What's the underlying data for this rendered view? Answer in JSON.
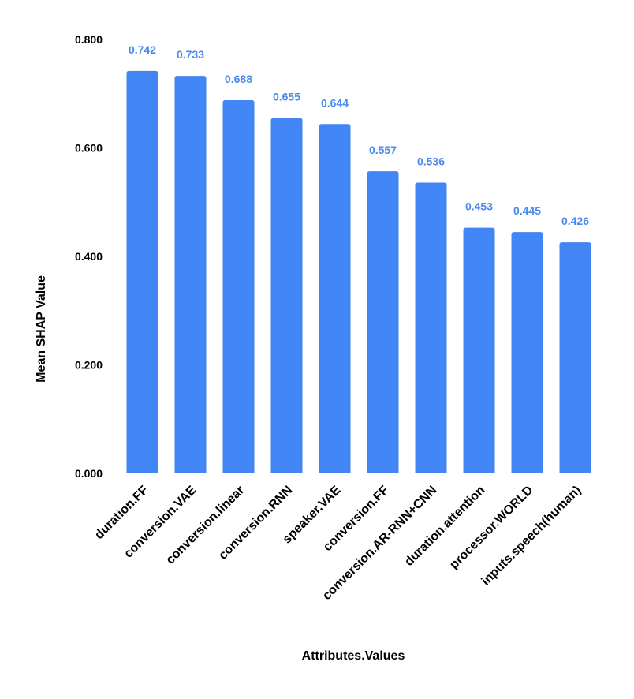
{
  "chart_data": {
    "type": "bar",
    "xlabel": "Attributes.Values",
    "ylabel": "Mean SHAP Value",
    "ylim": [
      0,
      0.8
    ],
    "yticks": [
      {
        "value": 0,
        "label": "0.000"
      },
      {
        "value": 0.2,
        "label": "0.200"
      },
      {
        "value": 0.4,
        "label": "0.400"
      },
      {
        "value": 0.6,
        "label": "0.600"
      },
      {
        "value": 0.8,
        "label": "0.800"
      }
    ],
    "grid": false,
    "legend": "none",
    "bar_color": "#4285f4",
    "label_color": "#4a8af0",
    "categories": [
      "duration.FF",
      "conversion.VAE",
      "conversion.linear",
      "conversion.RNN",
      "speaker.VAE",
      "conversion.FF",
      "conversion.AR-RNN+CNN",
      "duration.attention",
      "processor.WORLD",
      "inputs.speech(human)"
    ],
    "values": [
      0.742,
      0.733,
      0.688,
      0.655,
      0.644,
      0.557,
      0.536,
      0.453,
      0.445,
      0.426
    ],
    "value_labels": [
      "0.742",
      "0.733",
      "0.688",
      "0.655",
      "0.644",
      "0.557",
      "0.536",
      "0.453",
      "0.445",
      "0.426"
    ]
  }
}
